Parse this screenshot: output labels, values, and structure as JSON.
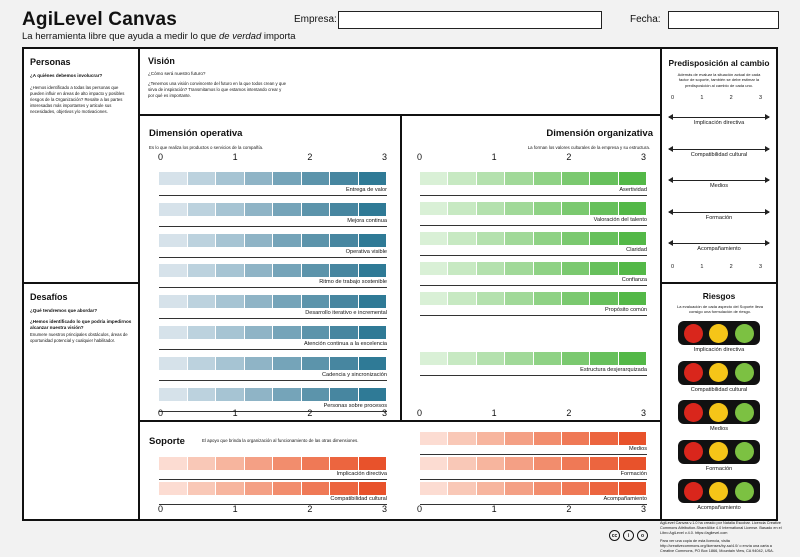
{
  "header": {
    "title": "AgiLevel Canvas",
    "subtitle_pre": "La herramienta libre que ayuda a medir lo que ",
    "subtitle_em": "de verdad",
    "subtitle_post": " importa",
    "empresa_label": "Empresa:",
    "empresa_value": "",
    "fecha_label": "Fecha:",
    "fecha_value": ""
  },
  "personas": {
    "title": "Personas",
    "question": "¿A quiénes debemos involucrar?",
    "text": "¿Hemos identificado a todas las personas que pueden influir en áreas de alto impacto y posibles riesgos de la Organización? Resalte a las partes interesadas más importantes y articule sus necesidades, objetivos y/o motivaciones."
  },
  "desafios": {
    "title": "Desafíos",
    "question": "¿Qué tendremos que abordar?",
    "q2": "¿Hemos identificado lo que podría impedirnos alcanzar nuestra visión?",
    "text": "Enumere nuestros principales obstáculos, áreas de oportunidad potencial y cualquier habilitador."
  },
  "vision": {
    "title": "Visión",
    "question": "¿Cómo será nuestro futuro?",
    "text": "¿Tenemos una visión convincente del futuro en la que todos crean y que sirva de inspiración? Transmitamos lo que estamos intentando crear y por qué es importante."
  },
  "operativa": {
    "title": "Dimensión operativa",
    "desc": "Es lo que realiza los productos o servicios de la compañía.",
    "ticks": [
      "0",
      "1",
      "2",
      "3"
    ],
    "items": [
      "Entrega de valor",
      "Mejora continua",
      "Operativa visible",
      "Ritmo de trabajo sostenible",
      "Desarrollo iterativo e incremental",
      "Atención continua a la excelencia",
      "Cadencia y sincronización",
      "Personas sobre procesos"
    ]
  },
  "organizativa": {
    "title": "Dimensión organizativa",
    "desc": "La forman los valores culturales de la empresa y su estructura.",
    "ticks": [
      "0",
      "1",
      "2",
      "3"
    ],
    "items": [
      "Asertividad",
      "Valoración del talento",
      "Claridad",
      "Confianza",
      "Propósito común",
      "Estructura desjerarquizada"
    ]
  },
  "soporte": {
    "title": "Soporte",
    "desc": "El apoyo que brinda la organización al funcionamiento de las otras dimensiones.",
    "ticks": [
      "0",
      "1",
      "2",
      "3"
    ],
    "left_items": [
      "Implicación directiva",
      "Compatibilidad cultural"
    ],
    "right_items": [
      "Medios",
      "Formación",
      "Acompañamiento"
    ]
  },
  "predisposicion": {
    "title": "Predisposición al cambio",
    "desc": "Además de evaluar la situación actual de cada factor de soporte, también se debe estimar la predisposición al cambio de cada uno.",
    "ticks": [
      "0",
      "1",
      "2",
      "3"
    ],
    "items": [
      "Implicación directiva",
      "Compatibilidad cultural",
      "Medios",
      "Formación",
      "Acompañamiento"
    ]
  },
  "riesgos": {
    "title": "Riesgos",
    "desc": "La evaluación de cada aspecto del Soporte lleva consigo una formulación de riesgo.",
    "items": [
      "Implicación directiva",
      "Compatibilidad cultural",
      "Medios",
      "Formación",
      "Acompañamiento"
    ]
  },
  "footer": {
    "license": "AgiLevel Canvas v.1.0 ha creado por Natalia Escobar. Licencia Creative Commons Attribution-ShareAlike 4.0 International License. Basado en el Libro AgiLevel v.4.0. https://agilevel.com",
    "license2": "Para ver una copia de esta licencia, visita http://creativecommons.org/licenses/by-sa/4.0/ o envía una carta a Creative Commons, PO Box 1866, Mountain View, CA 94042, USA.",
    "cc_icons": [
      "cc",
      "i",
      "o"
    ]
  },
  "colors": {
    "blue": [
      "#d6e2ea",
      "#bcd2de",
      "#a6c4d3",
      "#8fb4c6",
      "#75a4b9",
      "#5c94ab",
      "#4786a0",
      "#2f7a96"
    ],
    "green": [
      "#d9f0d6",
      "#c7e9c2",
      "#b4e1ae",
      "#a1d999",
      "#8fd285",
      "#7bc970",
      "#67c05c",
      "#53b847"
    ],
    "orange": [
      "#fcdcd2",
      "#f9c8b7",
      "#f7b59e",
      "#f4a085",
      "#f28d6d",
      "#ef7956",
      "#ec653f",
      "#e8522b"
    ],
    "light_red": "#d9261c",
    "light_yellow": "#f5c518",
    "light_green": "#7cc142"
  }
}
